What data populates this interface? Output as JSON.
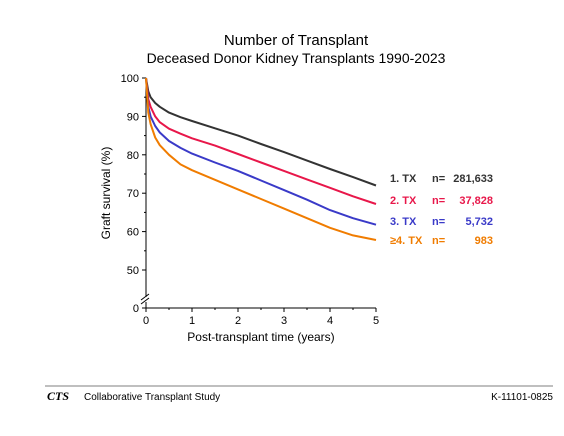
{
  "chart_data": {
    "type": "line",
    "title": "Number of Transplant",
    "subtitle": "Deceased Donor Kidney Transplants 1990-2023",
    "xlabel": "Post-transplant time (years)",
    "ylabel": "Graft survival (%)",
    "xlim": [
      0,
      5
    ],
    "ylim": [
      0,
      100
    ],
    "axis_break": true,
    "xticks": [
      "0",
      "1",
      "2",
      "3",
      "4",
      "5"
    ],
    "yticks": [
      "0",
      "50",
      "60",
      "70",
      "80",
      "90",
      "100"
    ],
    "grid": false,
    "legend_position": "right",
    "series": [
      {
        "name": "1. TX",
        "n_label": "n=",
        "n_value": "281,633",
        "color": "#333333",
        "x": [
          0,
          0.05,
          0.1,
          0.2,
          0.3,
          0.5,
          0.75,
          1,
          1.5,
          2,
          2.5,
          3,
          3.5,
          4,
          4.5,
          5
        ],
        "y": [
          100,
          96.5,
          95,
          93.5,
          92.5,
          91,
          89.8,
          88.8,
          86.9,
          85,
          82.8,
          80.7,
          78.5,
          76.3,
          74.2,
          72
        ]
      },
      {
        "name": "2. TX",
        "n_label": "n=",
        "n_value": "37,828",
        "color": "#e8174a",
        "x": [
          0,
          0.05,
          0.1,
          0.2,
          0.3,
          0.5,
          0.75,
          1,
          1.5,
          2,
          2.5,
          3,
          3.5,
          4,
          4.5,
          5
        ],
        "y": [
          100,
          94.5,
          92.5,
          90,
          88.5,
          86.8,
          85.5,
          84.3,
          82.4,
          80.2,
          78,
          75.8,
          73.6,
          71.4,
          69.2,
          67.2
        ]
      },
      {
        "name": "3. TX",
        "n_label": "n=",
        "n_value": "5,732",
        "color": "#3a3ac8",
        "x": [
          0,
          0.05,
          0.1,
          0.2,
          0.3,
          0.5,
          0.75,
          1,
          1.5,
          2,
          2.5,
          3,
          3.5,
          4,
          4.5,
          5
        ],
        "y": [
          100,
          92.5,
          90,
          87.5,
          85.8,
          83.6,
          81.8,
          80.3,
          78,
          75.8,
          73.3,
          70.8,
          68.3,
          65.6,
          63.5,
          61.8
        ]
      },
      {
        "name": "≥4. TX",
        "n_label": "n=",
        "n_value": "983",
        "color": "#f07c00",
        "x": [
          0,
          0.05,
          0.1,
          0.2,
          0.3,
          0.5,
          0.75,
          1,
          1.5,
          2,
          2.5,
          3,
          3.5,
          4,
          4.5,
          5
        ],
        "y": [
          100,
          91,
          88,
          84.5,
          82.5,
          80,
          77.5,
          76,
          73.5,
          71,
          68.5,
          66,
          63.5,
          61,
          59,
          57.8
        ]
      }
    ]
  },
  "footer": {
    "logo": "CTS",
    "org": "Collaborative Transplant Study",
    "code": "K-11101-0825"
  },
  "colors": {
    "axis": "#000000",
    "footer_rule": "#555555"
  }
}
